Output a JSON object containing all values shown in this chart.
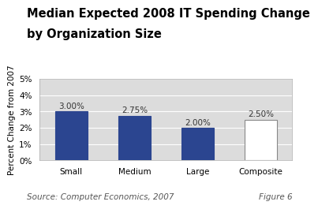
{
  "title_line1": "Median Expected 2008 IT Spending Change",
  "title_line2": "by Organization Size",
  "categories": [
    "Small",
    "Medium",
    "Large",
    "Composite"
  ],
  "values": [
    3.0,
    2.75,
    2.0,
    2.5
  ],
  "bar_colors": [
    "#2b4590",
    "#2b4590",
    "#2b4590",
    "#ffffff"
  ],
  "bar_edgecolors": [
    "#2b4590",
    "#2b4590",
    "#2b4590",
    "#888888"
  ],
  "bar_labels": [
    "3.00%",
    "2.75%",
    "2.00%",
    "2.50%"
  ],
  "ylabel": "Percent Change from 2007",
  "ylim": [
    0,
    5
  ],
  "yticks": [
    0,
    1,
    2,
    3,
    4,
    5
  ],
  "yticklabels": [
    "0%",
    "1%",
    "2%",
    "3%",
    "4%",
    "5%"
  ],
  "plot_bg_color": "#dcdcdc",
  "fig_bg_color": "#ffffff",
  "source_text": "Source: Computer Economics, 2007",
  "figure_text": "Figure 6",
  "title_fontsize": 10.5,
  "label_fontsize": 7.5,
  "tick_fontsize": 7.5,
  "source_fontsize": 7.5,
  "bar_label_fontsize": 7.5,
  "bar_width": 0.52
}
